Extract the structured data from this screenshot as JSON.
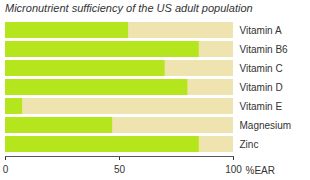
{
  "chart_data": {
    "type": "bar",
    "orientation": "horizontal",
    "title": "Micronutrient sufficiency of the US adult population",
    "categories": [
      "Vitamin A",
      "Vitamin B6",
      "Vitamin C",
      "Vitamin D",
      "Vitamin E",
      "Magnesium",
      "Zinc"
    ],
    "values": [
      54,
      85,
      70,
      80,
      7.5,
      47,
      85
    ],
    "color": "#b5e61d",
    "x_label": "%EAR",
    "xlim": [
      0,
      100
    ],
    "xticks": [
      0,
      50,
      100
    ],
    "grid": false
  }
}
